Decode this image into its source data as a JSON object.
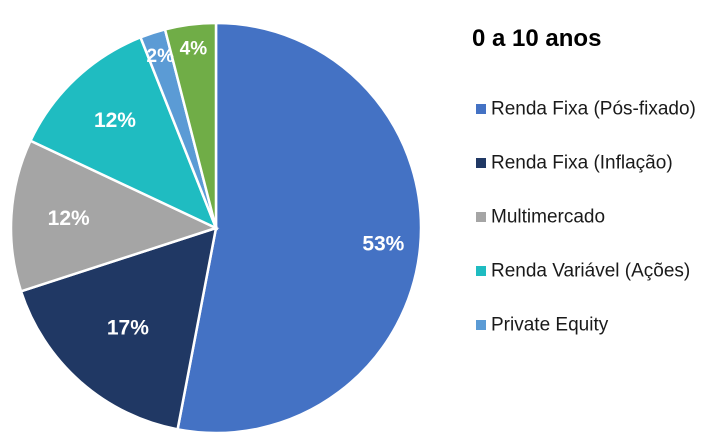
{
  "chart_data": {
    "type": "pie",
    "title": "0 a 10 anos",
    "legend_position": "right",
    "start_angle": "top, clockwise",
    "slices": [
      {
        "name": "Renda Fixa (Pós-fixado)",
        "value": 53,
        "label": "53%",
        "color": "#4472C4",
        "in_legend": true
      },
      {
        "name": "Renda Fixa (Inflação)",
        "value": 17,
        "label": "17%",
        "color": "#203864",
        "in_legend": true
      },
      {
        "name": "Multimercado",
        "value": 12,
        "label": "12%",
        "color": "#A5A5A5",
        "in_legend": true
      },
      {
        "name": "Renda Variável (Ações)",
        "value": 12,
        "label": "12%",
        "color": "#1FBCC1",
        "in_legend": true
      },
      {
        "name": "Private Equity",
        "value": 2,
        "label": "2%",
        "color": "#5B9BD5",
        "in_legend": true
      },
      {
        "name": "",
        "value": 4,
        "label": "4%",
        "color": "#70AD47",
        "in_legend": false
      }
    ]
  }
}
